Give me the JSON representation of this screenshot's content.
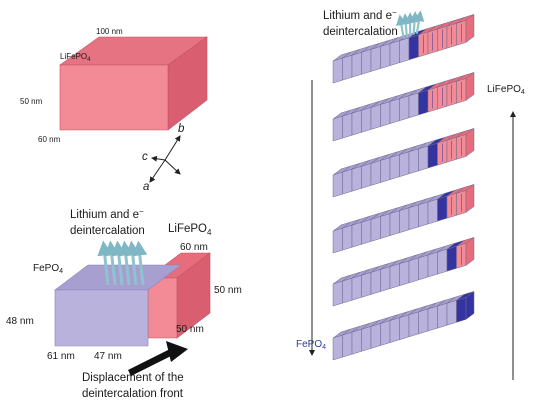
{
  "top_block": {
    "material_name": "LiFePO",
    "material_sub": "4",
    "dim_length": "100 nm",
    "dim_height": "50 nm",
    "dim_depth": "60 nm"
  },
  "axes": {
    "a": "a",
    "b": "b",
    "c": "c"
  },
  "bottom_block": {
    "title_line1": "Lithium and e",
    "title_minus": "−",
    "title_line2": "deintercalation",
    "fepo4_name": "FePO",
    "fepo4_sub": "4",
    "lifepo4_name": "LiFePO",
    "lifepo4_sub": "4",
    "dim_60": "60 nm",
    "dim_50_right": "50 nm",
    "dim_48": "48 nm",
    "dim_61": "61 nm",
    "dim_47": "47 nm",
    "dim_50_bottom": "50 nm",
    "front_line1": "Displacement of the",
    "front_line2": "deintercalation front"
  },
  "stack": {
    "title_line1": "Lithium and e",
    "title_minus": "−",
    "title_line2": "deintercalation",
    "lifepo4_name": "LiFePO",
    "lifepo4_sub": "4",
    "fepo4_name": "FePO",
    "fepo4_sub": "4"
  },
  "colors": {
    "lifepo4_face": "#f28b96",
    "lifepo4_top": "#e86d7c",
    "fepo4_face": "#b9b2dc",
    "fepo4_top": "#a79fd0",
    "interface": "#3434a0",
    "arrows": "#8fc3cf"
  }
}
